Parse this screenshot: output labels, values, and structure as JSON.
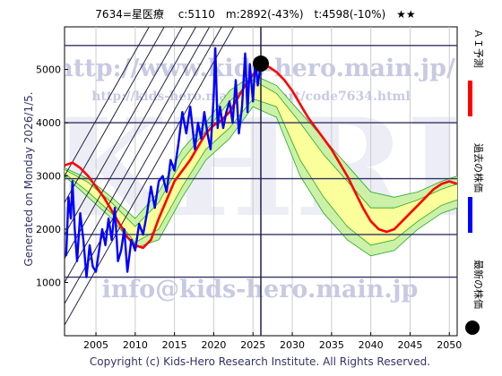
{
  "title": "7634=星医療　 c:5110　m:2892(-43%)　t:4598(-10%)　★★",
  "generated": "Generated on Monday 2026/1/5.",
  "copyright": "Copyright (c) Kids-Hero Research Institute. All Rights Reserved.",
  "watermark": {
    "url": "http://www.kids-hero.main.jp/",
    "url_small": "http://kids-hero.main.jp/chart/code7634.html",
    "email": "info@kids-hero.main.jp",
    "logo": "KHRI"
  },
  "legend": [
    {
      "label": "ＡＩ予測",
      "color": "#ff0000"
    },
    {
      "label": "過去の株価",
      "color": "#0000ff"
    },
    {
      "label": "最新の株価",
      "color": "#000000"
    }
  ],
  "colors": {
    "prediction": "#ff0000",
    "past": "#0000ff",
    "latest": "#000000",
    "band_outer": "#c8f0a0",
    "band_inner": "#ffff99",
    "band_line": "#22aa22",
    "trend": "#222244",
    "hline": "#333366"
  },
  "chart_data": {
    "type": "line",
    "title": "7634=星医療　 c:5110　m:2892(-43%)　t:4598(-10%)　★★",
    "xlim": [
      2001,
      2051
    ],
    "ylim": [
      0,
      5800
    ],
    "x_ticks": [
      2005,
      2010,
      2015,
      2020,
      2025,
      2030,
      2035,
      2040,
      2045,
      2050
    ],
    "y_ticks": [
      1000,
      2000,
      3000,
      4000,
      5000
    ],
    "hlines": [
      1100,
      1900,
      2950,
      4000,
      5450
    ],
    "vline_x": 2026,
    "latest": {
      "x": 2026,
      "y": 5110
    },
    "trend_slope_per_year": 260,
    "trend_intercepts": [
      200,
      600,
      1000,
      1450,
      1900,
      2500,
      3000
    ],
    "prediction": {
      "x": [
        2001,
        2002,
        2003,
        2004,
        2005,
        2006,
        2007,
        2008,
        2009,
        2010,
        2011,
        2012,
        2013,
        2014,
        2015,
        2016,
        2017,
        2018,
        2019,
        2020,
        2021,
        2022,
        2023,
        2024,
        2025,
        2026,
        2027,
        2028,
        2029,
        2030,
        2031,
        2032,
        2033,
        2034,
        2035,
        2036,
        2037,
        2038,
        2039,
        2040,
        2041,
        2042,
        2043,
        2044,
        2045,
        2046,
        2047,
        2048,
        2049,
        2050,
        2051
      ],
      "y": [
        3200,
        3250,
        3150,
        3000,
        2800,
        2600,
        2350,
        2100,
        1850,
        1700,
        1650,
        1800,
        2200,
        2550,
        2900,
        3100,
        3300,
        3550,
        3800,
        3950,
        4050,
        4200,
        4450,
        4700,
        4900,
        5050,
        5050,
        4950,
        4800,
        4600,
        4350,
        4100,
        3900,
        3700,
        3500,
        3250,
        3000,
        2700,
        2400,
        2150,
        2000,
        1950,
        2000,
        2150,
        2300,
        2450,
        2600,
        2750,
        2850,
        2900,
        2850
      ]
    },
    "past": {
      "x": [
        2001.2,
        2001.5,
        2001.8,
        2002.0,
        2002.3,
        2002.6,
        2003.0,
        2003.4,
        2003.8,
        2004.2,
        2004.6,
        2005.0,
        2005.4,
        2005.8,
        2006.2,
        2006.6,
        2007.0,
        2007.4,
        2007.8,
        2008.2,
        2008.6,
        2009.0,
        2009.5,
        2010.0,
        2010.5,
        2011.0,
        2011.5,
        2012.0,
        2012.5,
        2013.0,
        2013.5,
        2014.0,
        2014.5,
        2015.0,
        2015.5,
        2016.0,
        2016.5,
        2017.0,
        2017.3,
        2017.6,
        2018.0,
        2018.4,
        2018.8,
        2019.2,
        2019.6,
        2020.0,
        2020.2,
        2020.5,
        2020.8,
        2021.2,
        2021.6,
        2022.0,
        2022.4,
        2022.8,
        2023.2,
        2023.6,
        2024.0,
        2024.3,
        2024.6,
        2025.0,
        2025.3,
        2025.6,
        2026.0
      ],
      "y": [
        1500,
        2600,
        2200,
        2900,
        2000,
        1400,
        2300,
        1800,
        1100,
        1700,
        1300,
        1200,
        1600,
        2000,
        1700,
        2200,
        1800,
        2400,
        1400,
        1600,
        2000,
        1200,
        1800,
        1600,
        2100,
        1900,
        2300,
        2800,
        2400,
        2900,
        3000,
        2700,
        3300,
        3100,
        3600,
        4200,
        3800,
        4300,
        3900,
        3500,
        4000,
        3700,
        4200,
        3800,
        3500,
        4500,
        5400,
        3900,
        4300,
        3900,
        4200,
        4400,
        4000,
        4800,
        3800,
        4300,
        5300,
        4200,
        5100,
        4400,
        5200,
        4700,
        5110
      ]
    },
    "band": {
      "x": [
        2001,
        2004,
        2007,
        2010,
        2013,
        2016,
        2019,
        2022,
        2025,
        2028,
        2031,
        2034,
        2037,
        2040,
        2043,
        2046,
        2049,
        2051
      ],
      "outer_low": [
        3000,
        2600,
        2200,
        1650,
        1800,
        2600,
        3300,
        3700,
        4300,
        4100,
        3000,
        2300,
        1800,
        1500,
        1600,
        2000,
        2300,
        2400
      ],
      "outer_high": [
        3150,
        2950,
        2600,
        2200,
        2700,
        3500,
        4000,
        4600,
        4900,
        4700,
        4200,
        3700,
        3200,
        2700,
        2600,
        2700,
        2900,
        3000
      ],
      "inner_low": [
        3050,
        2700,
        2300,
        1750,
        2000,
        2800,
        3500,
        3900,
        4450,
        4300,
        3300,
        2600,
        2050,
        1700,
        1800,
        2150,
        2450,
        2550
      ],
      "inner_high": [
        3120,
        2880,
        2500,
        2050,
        2500,
        3300,
        3850,
        4400,
        4800,
        4550,
        4000,
        3400,
        2900,
        2400,
        2400,
        2550,
        2750,
        2850
      ]
    }
  }
}
